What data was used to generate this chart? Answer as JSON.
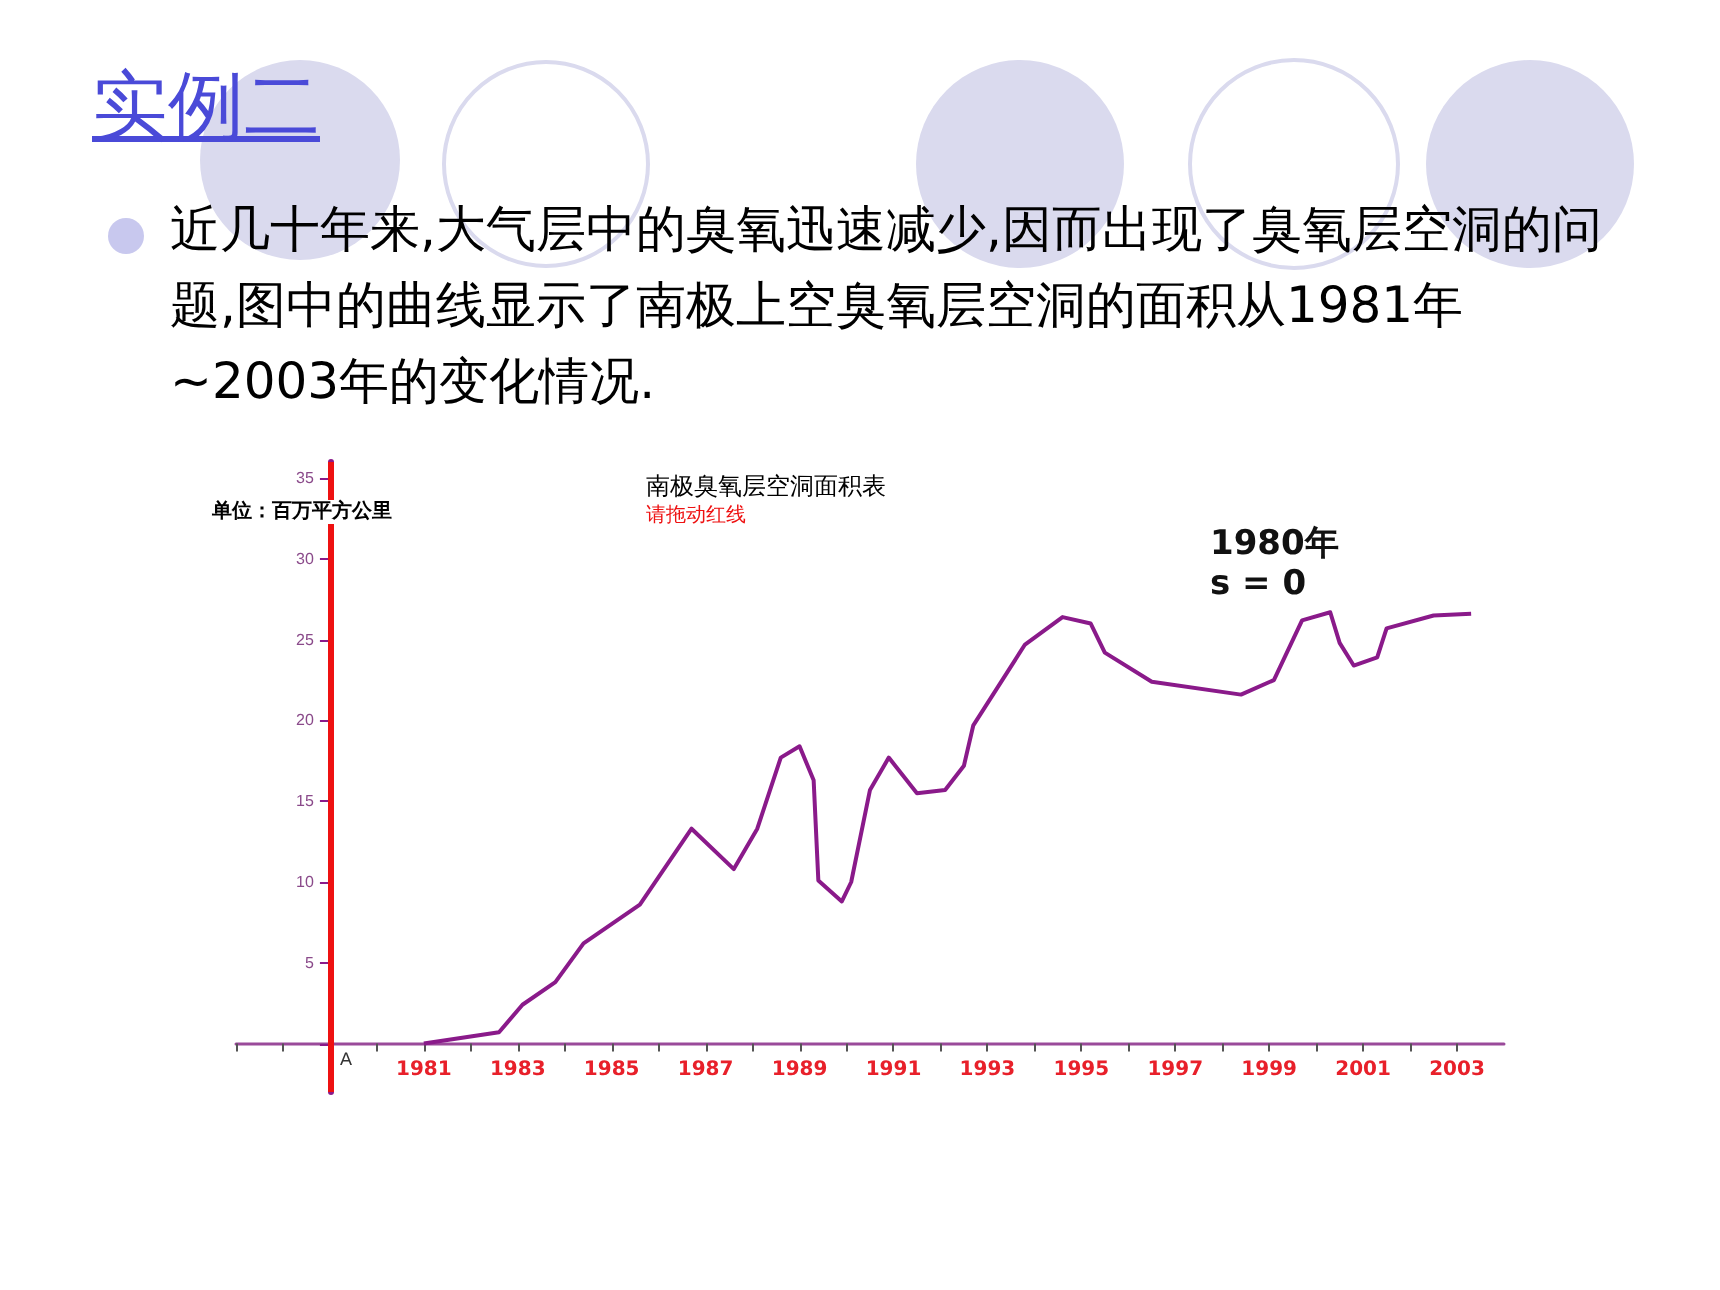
{
  "chart_data": {
    "type": "line",
    "title": "南极臭氧层空洞面积表",
    "subtitle": "请拖动红线",
    "ylabel": "单位：百万平方公里",
    "annotations": [
      "实例二",
      "近几十年来,大气层中的臭氧迅速减少,因而出现了臭氧层空洞的问题,图中的曲线显示了南极上空臭氧层空洞的面积从1981年~2003年的变化情况.",
      "1980年\ns = 0",
      {
        "text": "A",
        "x": 1979,
        "y": 0
      }
    ],
    "series": [
      {
        "color": "#8a1a8a",
        "x": [
          1981,
          1982.6,
          1983.1,
          1983.8,
          1984.4,
          1985.6,
          1986.7,
          1987.6,
          1988.1,
          1988.6,
          1989.0,
          1989.3,
          1989.4,
          1989.9,
          1990.1,
          1990.5,
          1990.9,
          1991.5,
          1992.1,
          1992.5,
          1992.7,
          1993.8,
          1994.6,
          1995.2,
          1995.5,
          1996.5,
          1998.4,
          1999.1,
          1999.7,
          2000.3,
          2000.5,
          2000.8,
          2001.3,
          2001.5,
          2002.5,
          2003.3
        ],
        "values": [
          0,
          0.7,
          2.4,
          3.8,
          6.2,
          8.6,
          13.3,
          10.8,
          13.3,
          17.7,
          18.4,
          16.3,
          10.1,
          8.8,
          10.0,
          15.7,
          17.7,
          15.5,
          15.7,
          17.2,
          19.7,
          24.7,
          26.4,
          26.0,
          24.2,
          22.4,
          21.6,
          22.5,
          26.2,
          26.7,
          24.8,
          23.4,
          23.9,
          25.7,
          26.5,
          26.6
        ]
      }
    ],
    "xlim": [
      1977,
      2004
    ],
    "xticks": [
      {
        "value": 1977,
        "label": null
      },
      {
        "value": 1978,
        "label": null
      },
      {
        "value": 1979,
        "label": null
      },
      {
        "value": 1980,
        "label": null
      },
      1981,
      {
        "value": 1982,
        "label": null
      },
      1983,
      {
        "value": 1984,
        "label": null
      },
      1985,
      {
        "value": 1986,
        "label": null
      },
      1987,
      {
        "value": 1988,
        "label": null
      },
      1989,
      {
        "value": 1990,
        "label": null
      },
      1991,
      {
        "value": 1992,
        "label": null
      },
      1993,
      {
        "value": 1994,
        "label": null
      },
      1995,
      {
        "value": 1996,
        "label": null
      },
      1997,
      {
        "value": 1998,
        "label": null
      },
      1999,
      {
        "value": 2000,
        "label": null
      },
      2001,
      {
        "value": 2002,
        "label": null
      },
      2003
    ],
    "ylim": [
      -3,
      36
    ],
    "yticks": [
      {
        "value": 0,
        "label": null
      },
      5,
      10,
      15,
      20,
      25,
      30,
      35
    ],
    "ref_lines": [
      {
        "axis": "x",
        "value": 1979,
        "color": "#ee1111"
      }
    ],
    "grid": false,
    "marker": "none",
    "line_style": "solid"
  }
}
